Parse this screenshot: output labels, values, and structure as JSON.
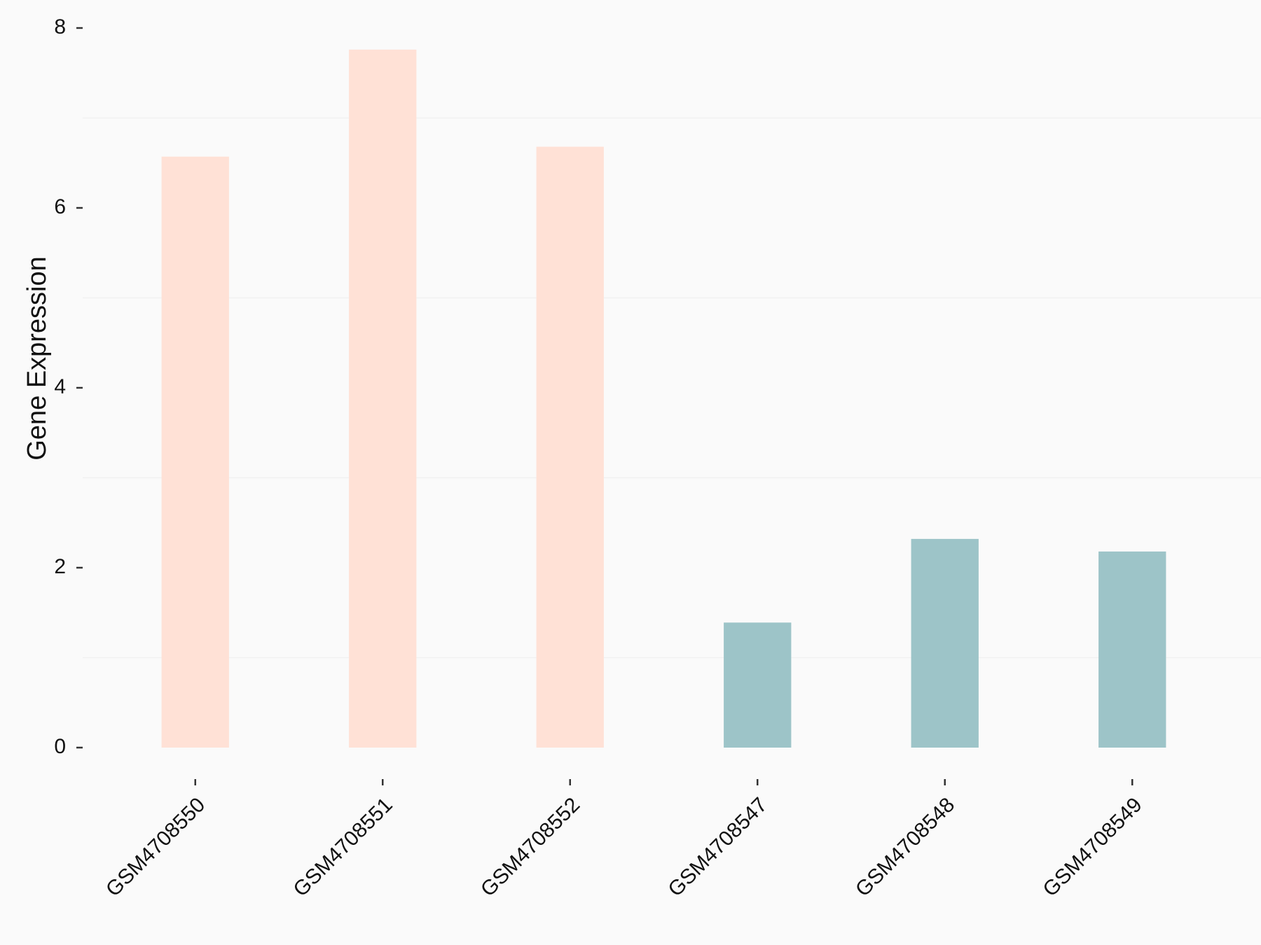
{
  "chart_data": {
    "type": "bar",
    "y_label": "Gene Expression",
    "categories": [
      "GSM4708550",
      "GSM4708551",
      "GSM4708552",
      "GSM4708547",
      "GSM4708548",
      "GSM4708549"
    ],
    "values": [
      6.57,
      7.76,
      6.68,
      1.39,
      2.32,
      2.18
    ],
    "colors": [
      "#FFE1D6",
      "#FFE1D6",
      "#FFE1D6",
      "#9DC4C8",
      "#9DC4C8",
      "#9DC4C8"
    ],
    "ylim": [
      0,
      8
    ],
    "yticks": [
      0,
      2,
      4,
      6,
      8
    ],
    "minor_grid": [
      1,
      3,
      5,
      7
    ]
  }
}
